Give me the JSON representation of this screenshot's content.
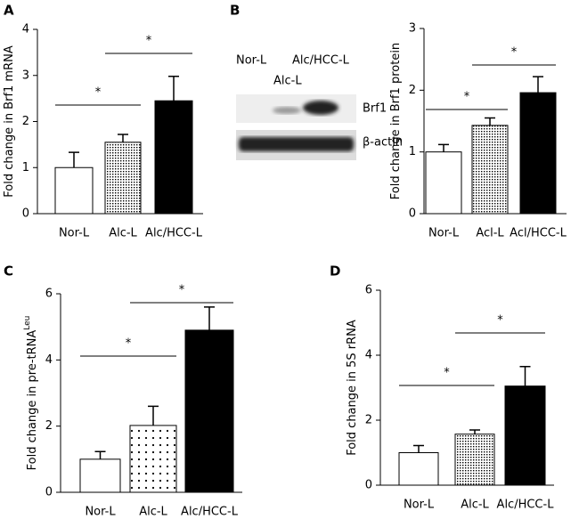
{
  "chart_data": [
    {
      "type": "bar",
      "panel": "A",
      "ylabel": "Fold change in Brf1 mRNA",
      "categories": [
        "Nor-L",
        "Alc-L",
        "Alc/HCC-L"
      ],
      "values": [
        1.0,
        1.55,
        2.45
      ],
      "errors": [
        0.33,
        0.17,
        0.53
      ],
      "fills": [
        "white",
        "dense-dots",
        "black"
      ],
      "ylim": [
        0,
        4
      ],
      "yticks": [
        0,
        1,
        2,
        3,
        4
      ],
      "annotations": [
        "*",
        "*"
      ]
    },
    {
      "type": "bar",
      "panel": "B",
      "ylabel": "Fold change in Brf1 protein",
      "categories": [
        "Nor-L",
        "Acl-L",
        "Acl/HCC-L"
      ],
      "values": [
        1.0,
        1.43,
        1.96
      ],
      "errors": [
        0.12,
        0.12,
        0.26
      ],
      "fills": [
        "white",
        "dense-dots",
        "black"
      ],
      "ylim": [
        0,
        3
      ],
      "yticks": [
        0,
        1,
        2,
        3
      ],
      "annotations": [
        "*",
        "*"
      ]
    },
    {
      "type": "bar",
      "panel": "C",
      "ylabel": "Fold change in pre-tRNA",
      "ylabel_sup": "Leu",
      "categories": [
        "Nor-L",
        "Alc-L",
        "Alc/HCC-L"
      ],
      "values": [
        1.0,
        2.02,
        4.9
      ],
      "errors": [
        0.23,
        0.58,
        0.7
      ],
      "fills": [
        "white",
        "sparse-dots",
        "black"
      ],
      "ylim": [
        0,
        6
      ],
      "yticks": [
        0,
        2,
        4,
        6
      ],
      "annotations": [
        "*",
        "*"
      ]
    },
    {
      "type": "bar",
      "panel": "D",
      "ylabel": "Fold change in 5S rRNA",
      "categories": [
        "Nor-L",
        "Alc-L",
        "Alc/HCC-L"
      ],
      "values": [
        1.0,
        1.57,
        3.05
      ],
      "errors": [
        0.22,
        0.13,
        0.6
      ],
      "fills": [
        "white",
        "dense-dots",
        "black"
      ],
      "ylim": [
        0,
        6
      ],
      "yticks": [
        0,
        2,
        4,
        6
      ],
      "annotations": [
        "*",
        "*"
      ]
    }
  ],
  "blot": {
    "lanes": [
      "Nor-L",
      "Alc-L",
      "Alc/HCC-L"
    ],
    "bands": [
      "Brf1",
      "β-actin"
    ]
  }
}
